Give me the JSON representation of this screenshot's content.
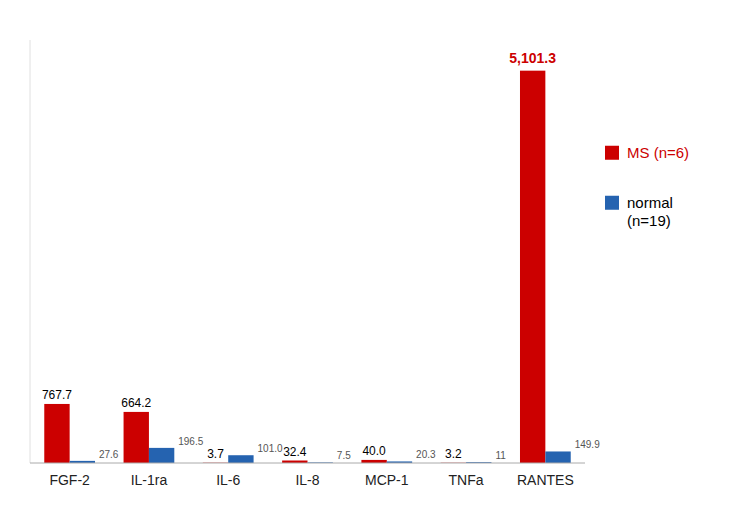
{
  "chart_data": {
    "type": "bar",
    "categories": [
      "FGF-2",
      "IL-1ra",
      "IL-6",
      "IL-8",
      "MCP-1",
      "TNFa",
      "RANTES"
    ],
    "series": [
      {
        "name": "MS (n=6)",
        "color": "#cc0000",
        "values": [
          767.7,
          664.2,
          3.7,
          32.4,
          40.0,
          3.2,
          5101.3
        ],
        "value_labels": [
          "767.7",
          "664.2",
          "3.7",
          "32.4",
          "40.0",
          "3.2",
          "5,101.3"
        ]
      },
      {
        "name": "normal\n(n=19)",
        "color": "#2563b0",
        "values": [
          27.6,
          196.5,
          101.0,
          7.5,
          20.3,
          11,
          149.9
        ],
        "value_labels": [
          "27.6",
          "196.5",
          "101.0",
          "7.5",
          "20.3",
          "11",
          "149.9"
        ]
      }
    ],
    "ylim": [
      0,
      5500
    ],
    "tick_labels": "x",
    "data_labels": true,
    "grid": false,
    "legend": "right"
  }
}
